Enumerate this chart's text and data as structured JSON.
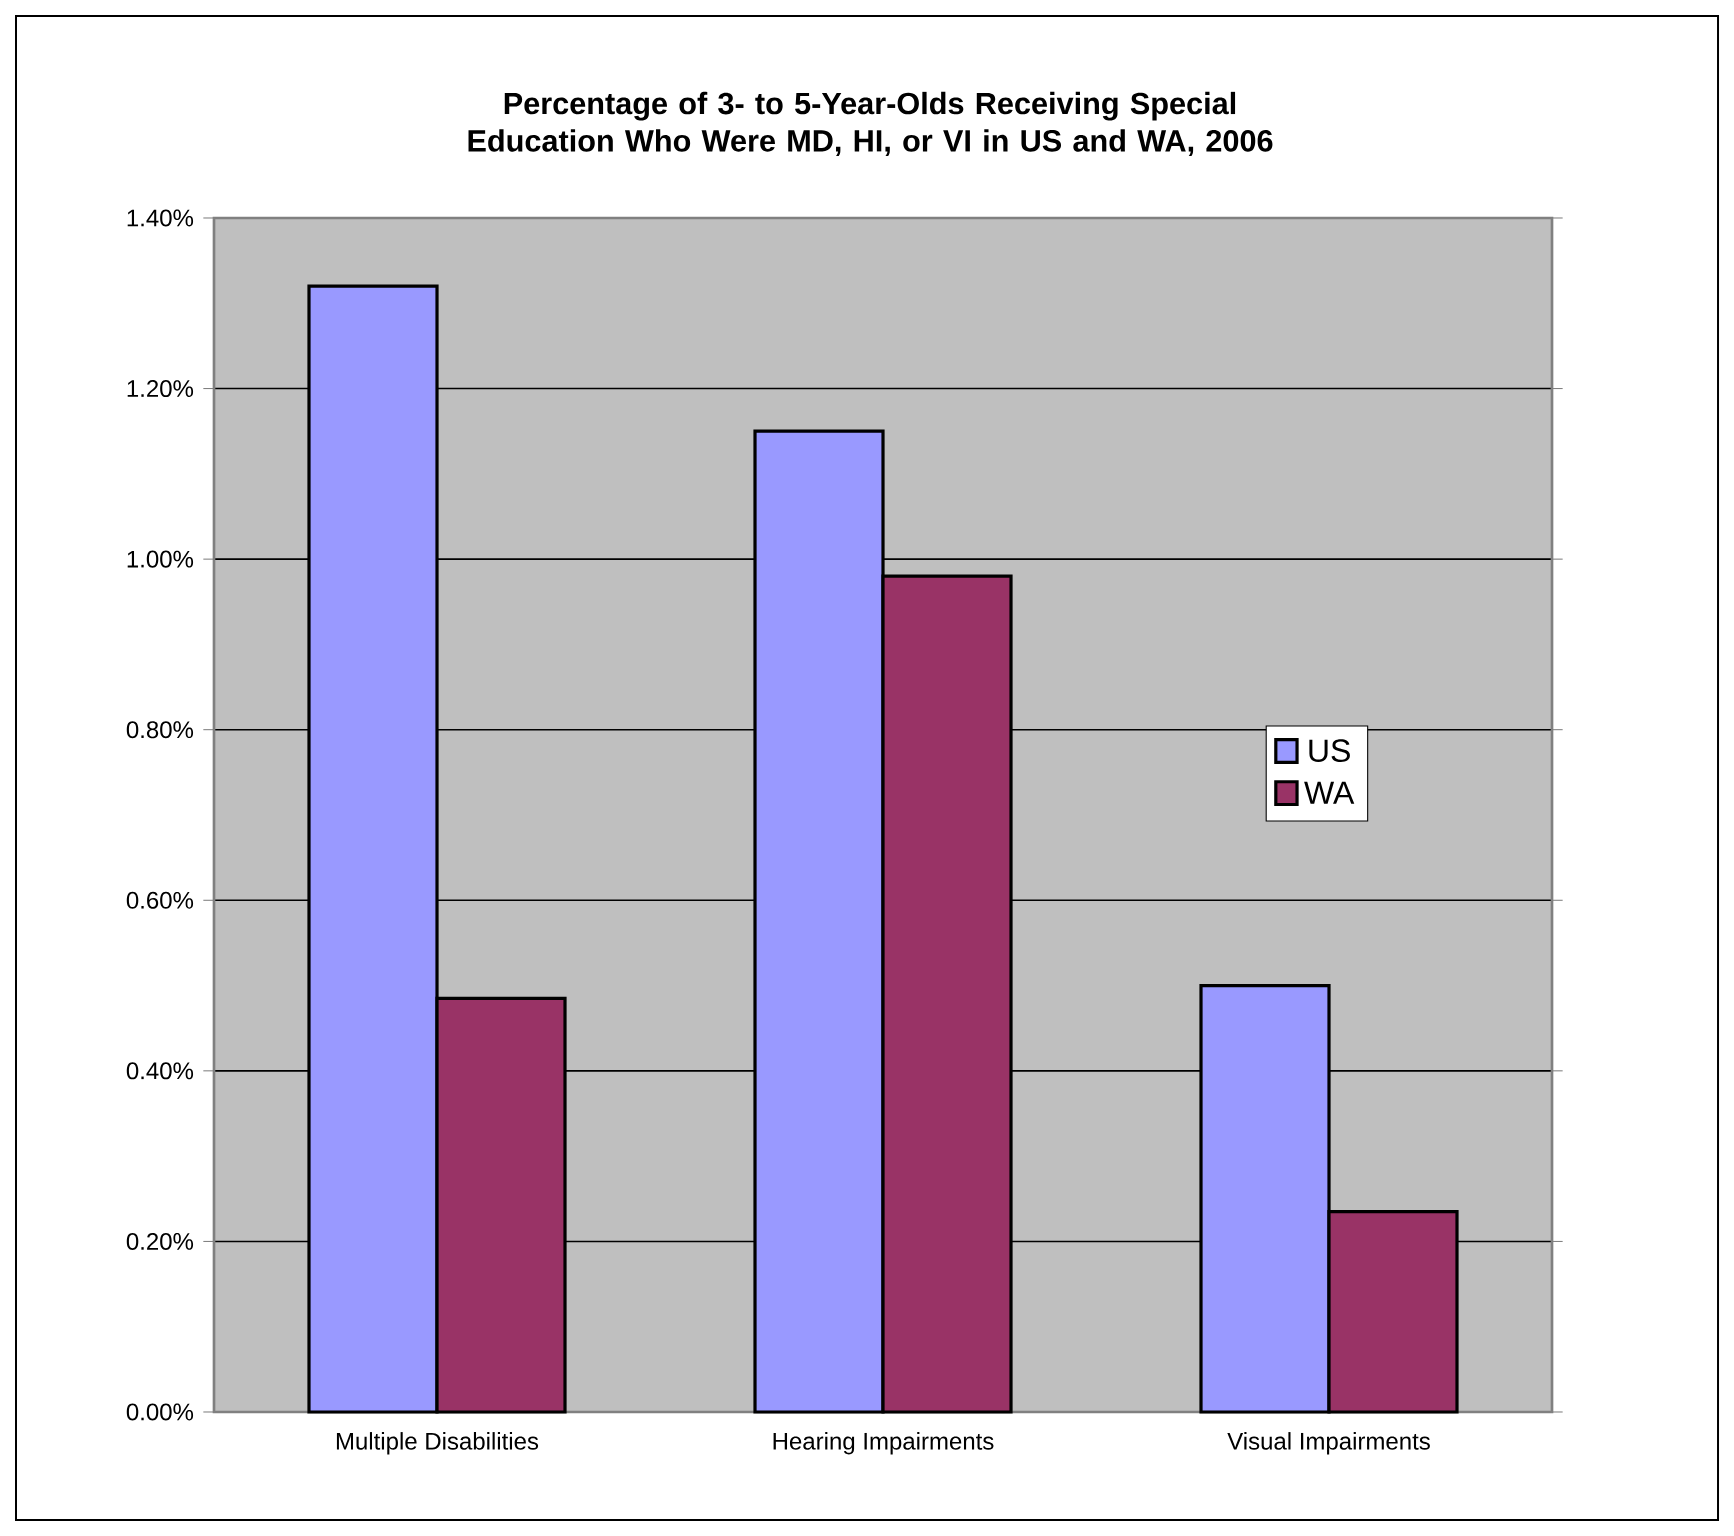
{
  "chart_data": {
    "type": "bar",
    "title": "Percentage of 3- to 5-Year-Olds Receiving Special Education Who Were MD, HI, or VI in US and WA, 2006",
    "categories": [
      "Multiple Disabilities",
      "Hearing Impairments",
      "Visual Impairments"
    ],
    "series": [
      {
        "name": "US",
        "color": "#9999ff",
        "values": [
          1.32,
          1.15,
          0.5
        ]
      },
      {
        "name": "WA",
        "color": "#993366",
        "values": [
          0.485,
          0.98,
          0.235
        ]
      }
    ],
    "ylim": [
      0,
      1.4
    ],
    "yticks": [
      {
        "value": 0,
        "label": "0.00%"
      },
      {
        "value": 0.2,
        "label": "0.20%"
      },
      {
        "value": 0.4,
        "label": "0.40%"
      },
      {
        "value": 0.6,
        "label": "0.60%"
      },
      {
        "value": 0.8,
        "label": "0.80%"
      },
      {
        "value": 1.0,
        "label": "1.00%"
      },
      {
        "value": 1.2,
        "label": "1.20%"
      },
      {
        "value": 1.4,
        "label": "1.40%"
      }
    ],
    "grid": "y",
    "legend": "right"
  }
}
